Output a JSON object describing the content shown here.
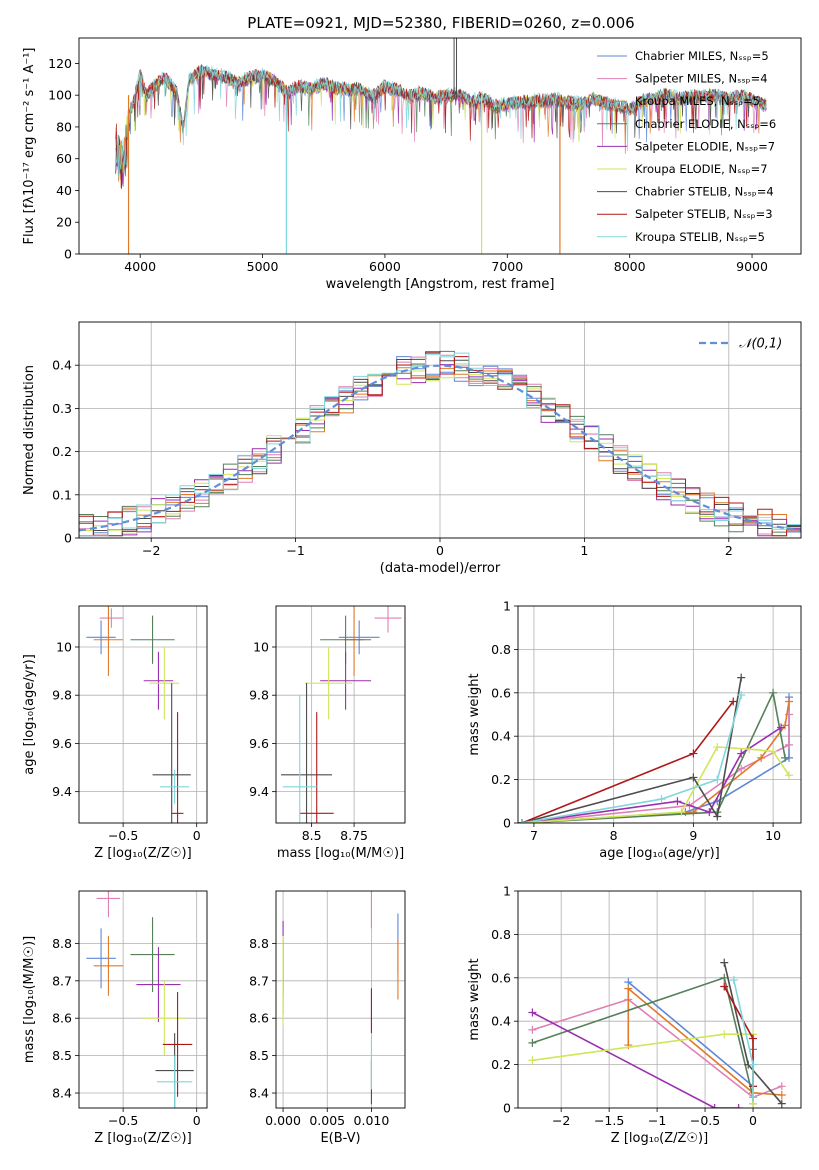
{
  "figure": {
    "title": "PLATE=0921, MJD=52380, FIBERID=0260, z=0.006"
  },
  "colors": {
    "Chabrier MILES": "#5f87d8",
    "Salpeter MILES": "#e07fb4",
    "Kroupa MILES": "#e07a2a",
    "Chabrier ELODIE": "#55805a",
    "Salpeter ELODIE": "#9a2fb0",
    "Kroupa ELODIE": "#cfe65a",
    "Chabrier STELIB": "#4d4d4d",
    "Salpeter STELIB": "#b01818",
    "Kroupa STELIB": "#7fd6dc",
    "normal": "#5f8fd8"
  },
  "chart_data": [
    {
      "id": "spectrum",
      "type": "line",
      "xlabel": "wavelength [Angstrom, rest frame]",
      "ylabel": "Flux [f_λ 10^-17 erg cm^-2 s^-1 A^-1]",
      "xlim": [
        3500,
        9400
      ],
      "ylim": [
        0,
        136
      ],
      "xticks": [
        4000,
        5000,
        6000,
        7000,
        8000,
        9000
      ],
      "yticks": [
        0,
        20,
        40,
        60,
        80,
        100,
        120
      ],
      "grid": false,
      "legend_position": "top-right",
      "legend": [
        "Chabrier MILES, N_SSP=5",
        "Salpeter MILES, N_SSP=4",
        "Kroupa MILES, N_SSP=5",
        "Chabrier ELODIE, N_SSP=6",
        "Salpeter ELODIE, N_SSP=7",
        "Kroupa ELODIE, N_SSP=7",
        "Chabrier STELIB, N_SSP=4",
        "Salpeter STELIB, N_SSP=3",
        "Kroupa STELIB, N_SSP=5"
      ],
      "spectrum_points": [
        [
          3800,
          80
        ],
        [
          3850,
          70
        ],
        [
          3900,
          85
        ],
        [
          3950,
          95
        ],
        [
          4000,
          112
        ],
        [
          4050,
          98
        ],
        [
          4100,
          103
        ],
        [
          4200,
          110
        ],
        [
          4300,
          100
        ],
        [
          4350,
          78
        ],
        [
          4400,
          108
        ],
        [
          4500,
          114
        ],
        [
          4600,
          112
        ],
        [
          4700,
          110
        ],
        [
          4800,
          106
        ],
        [
          4900,
          110
        ],
        [
          5000,
          111
        ],
        [
          5100,
          108
        ],
        [
          5200,
          100
        ],
        [
          5300,
          104
        ],
        [
          5400,
          103
        ],
        [
          5500,
          106
        ],
        [
          5600,
          103
        ],
        [
          5700,
          102
        ],
        [
          5800,
          103
        ],
        [
          5900,
          98
        ],
        [
          6000,
          104
        ],
        [
          6100,
          102
        ],
        [
          6200,
          98
        ],
        [
          6300,
          100
        ],
        [
          6400,
          97
        ],
        [
          6500,
          98
        ],
        [
          6600,
          100
        ],
        [
          6700,
          95
        ],
        [
          6800,
          97
        ],
        [
          6900,
          92
        ],
        [
          7000,
          93
        ],
        [
          7100,
          94
        ],
        [
          7200,
          95
        ],
        [
          7300,
          95
        ],
        [
          7400,
          96
        ],
        [
          7500,
          94
        ],
        [
          7600,
          93
        ],
        [
          7700,
          96
        ],
        [
          7800,
          94
        ],
        [
          7900,
          92
        ],
        [
          8000,
          90
        ],
        [
          8100,
          95
        ],
        [
          8200,
          97
        ],
        [
          8300,
          99
        ],
        [
          8400,
          96
        ],
        [
          8500,
          98
        ],
        [
          8600,
          98
        ],
        [
          8700,
          99
        ],
        [
          8800,
          96
        ],
        [
          8900,
          98
        ],
        [
          9000,
          96
        ],
        [
          9100,
          93
        ]
      ],
      "spectrum_dips": [
        [
          3905,
          0
        ],
        [
          5195,
          0
        ],
        [
          6790,
          0
        ],
        [
          7430,
          0
        ]
      ]
    },
    {
      "id": "residuals",
      "type": "histogram",
      "xlabel": "(data-model)/error",
      "ylabel": "Normed distribution",
      "xlim": [
        -2.5,
        2.5
      ],
      "ylim": [
        0,
        0.5
      ],
      "xticks": [
        -2,
        -1,
        0,
        1,
        2
      ],
      "yticks": [
        0.0,
        0.1,
        0.2,
        0.3,
        0.4
      ],
      "grid": true,
      "legend_position": "top-right",
      "legend": [
        "N(0,1)"
      ]
    },
    {
      "id": "age_vs_Z",
      "type": "scatter",
      "xlabel": "Z [log10(Z/Z☉)]",
      "ylabel": "age [log10(age/yr)]",
      "xlim": [
        -0.8,
        0.07
      ],
      "ylim": [
        9.27,
        10.17
      ],
      "xticks": [
        -0.5,
        0.0
      ],
      "yticks": [
        9.4,
        9.6,
        9.8,
        10.0
      ],
      "grid": true,
      "points": [
        {
          "model": "Chabrier MILES",
          "x": -0.65,
          "y": 10.04,
          "dx": 0.1,
          "dy": 0.07
        },
        {
          "model": "Salpeter MILES",
          "x": -0.58,
          "y": 10.12,
          "dx": 0.08,
          "dy": 0.04
        },
        {
          "model": "Kroupa MILES",
          "x": -0.6,
          "y": 10.03,
          "dx": 0.1,
          "dy": 0.15
        },
        {
          "model": "Chabrier ELODIE",
          "x": -0.3,
          "y": 10.03,
          "dx": 0.15,
          "dy": 0.1
        },
        {
          "model": "Salpeter ELODIE",
          "x": -0.26,
          "y": 9.86,
          "dx": 0.1,
          "dy": 0.12
        },
        {
          "model": "Kroupa ELODIE",
          "x": -0.22,
          "y": 9.85,
          "dx": 0.1,
          "dy": 0.15
        },
        {
          "model": "Chabrier STELIB",
          "x": -0.17,
          "y": 9.47,
          "dx": 0.13,
          "dy": 0.38
        },
        {
          "model": "Salpeter STELIB",
          "x": -0.13,
          "y": 9.31,
          "dx": 0.04,
          "dy": 0.42
        },
        {
          "model": "Kroupa STELIB",
          "x": -0.15,
          "y": 9.42,
          "dx": 0.1,
          "dy": 0.07
        }
      ]
    },
    {
      "id": "age_vs_mass",
      "type": "scatter",
      "xlabel": "mass [log10(M/M☉)]",
      "ylabel": "",
      "xlim": [
        8.29,
        9.05
      ],
      "ylim": [
        9.27,
        10.17
      ],
      "xticks": [
        8.5,
        8.75
      ],
      "yticks": [
        9.4,
        9.6,
        9.8,
        10.0
      ],
      "grid": true,
      "points": [
        {
          "model": "Chabrier MILES",
          "x": 8.78,
          "y": 10.04,
          "dx": 0.12,
          "dy": 0.07
        },
        {
          "model": "Salpeter MILES",
          "x": 8.95,
          "y": 10.12,
          "dx": 0.08,
          "dy": 0.06
        },
        {
          "model": "Kroupa MILES",
          "x": 8.75,
          "y": 10.03,
          "dx": 0.06,
          "dy": 0.15
        },
        {
          "model": "Chabrier ELODIE",
          "x": 8.7,
          "y": 10.03,
          "dx": 0.15,
          "dy": 0.1
        },
        {
          "model": "Salpeter ELODIE",
          "x": 8.7,
          "y": 9.86,
          "dx": 0.15,
          "dy": 0.12
        },
        {
          "model": "Kroupa ELODIE",
          "x": 8.6,
          "y": 9.85,
          "dx": 0.14,
          "dy": 0.15
        },
        {
          "model": "Chabrier STELIB",
          "x": 8.47,
          "y": 9.47,
          "dx": 0.15,
          "dy": 0.38
        },
        {
          "model": "Salpeter STELIB",
          "x": 8.53,
          "y": 9.31,
          "dx": 0.1,
          "dy": 0.42
        },
        {
          "model": "Kroupa STELIB",
          "x": 8.43,
          "y": 9.42,
          "dx": 0.1,
          "dy": 0.38
        }
      ]
    },
    {
      "id": "mass_weight_vs_age",
      "type": "line",
      "xlabel": "age [log10(age/yr)]",
      "ylabel": "mass weight",
      "xlim": [
        6.8,
        10.35
      ],
      "ylim": [
        0,
        1
      ],
      "xticks": [
        7,
        8,
        9,
        10
      ],
      "yticks": [
        0.0,
        0.2,
        0.4,
        0.6,
        0.8,
        1.0
      ],
      "grid": true,
      "series": [
        {
          "model": "Chabrier MILES",
          "x": [
            6.85,
            8.9,
            9.3,
            10.2,
            10.2
          ],
          "y": [
            0,
            0.05,
            0.1,
            0.3,
            0.58
          ]
        },
        {
          "model": "Salpeter MILES",
          "x": [
            6.85,
            8.95,
            9.6,
            10.2,
            10.2
          ],
          "y": [
            0,
            0.08,
            0.25,
            0.36,
            0.5
          ]
        },
        {
          "model": "Kroupa MILES",
          "x": [
            6.85,
            9.0,
            9.85,
            10.15,
            10.2
          ],
          "y": [
            0,
            0.05,
            0.3,
            0.45,
            0.56
          ]
        },
        {
          "model": "Chabrier ELODIE",
          "x": [
            6.85,
            9.3,
            10.0,
            10.15
          ],
          "y": [
            0,
            0.05,
            0.6,
            0.3
          ]
        },
        {
          "model": "Salpeter ELODIE",
          "x": [
            6.85,
            8.8,
            9.2,
            9.6,
            10.1
          ],
          "y": [
            0,
            0.1,
            0.05,
            0.32,
            0.44
          ]
        },
        {
          "model": "Kroupa ELODIE",
          "x": [
            6.85,
            8.85,
            9.3,
            9.7,
            10.0,
            10.2
          ],
          "y": [
            0,
            0.05,
            0.35,
            0.34,
            0.33,
            0.22
          ]
        },
        {
          "model": "Chabrier STELIB",
          "x": [
            6.85,
            9.0,
            9.3,
            9.6
          ],
          "y": [
            0,
            0.21,
            0.03,
            0.67
          ]
        },
        {
          "model": "Salpeter STELIB",
          "x": [
            6.85,
            9.0,
            9.5
          ],
          "y": [
            0,
            0.32,
            0.56
          ]
        },
        {
          "model": "Kroupa STELIB",
          "x": [
            6.85,
            8.6,
            9.3,
            9.6
          ],
          "y": [
            0,
            0.11,
            0.2,
            0.59
          ]
        }
      ]
    },
    {
      "id": "mass_vs_Z",
      "type": "scatter",
      "xlabel": "Z [log10(Z/Z☉)]",
      "ylabel": "mass [log10(M/M☉)]",
      "xlim": [
        -0.8,
        0.07
      ],
      "ylim": [
        8.36,
        8.94
      ],
      "xticks": [
        -0.5,
        0.0
      ],
      "yticks": [
        8.4,
        8.5,
        8.6,
        8.7,
        8.8
      ],
      "grid": true,
      "points": [
        {
          "model": "Chabrier MILES",
          "x": -0.65,
          "y": 8.76,
          "dx": 0.1,
          "dy": 0.08
        },
        {
          "model": "Salpeter MILES",
          "x": -0.6,
          "y": 8.92,
          "dx": 0.08,
          "dy": 0.05
        },
        {
          "model": "Kroupa MILES",
          "x": -0.6,
          "y": 8.74,
          "dx": 0.1,
          "dy": 0.08
        },
        {
          "model": "Chabrier ELODIE",
          "x": -0.3,
          "y": 8.77,
          "dx": 0.15,
          "dy": 0.1
        },
        {
          "model": "Salpeter ELODIE",
          "x": -0.26,
          "y": 8.69,
          "dx": 0.15,
          "dy": 0.1
        },
        {
          "model": "Kroupa ELODIE",
          "x": -0.22,
          "y": 8.6,
          "dx": 0.15,
          "dy": 0.1
        },
        {
          "model": "Chabrier STELIB",
          "x": -0.15,
          "y": 8.46,
          "dx": 0.13,
          "dy": 0.1
        },
        {
          "model": "Salpeter STELIB",
          "x": -0.13,
          "y": 8.53,
          "dx": 0.1,
          "dy": 0.14
        },
        {
          "model": "Kroupa STELIB",
          "x": -0.15,
          "y": 8.43,
          "dx": 0.12,
          "dy": 0.07
        }
      ]
    },
    {
      "id": "mass_vs_EBV",
      "type": "scatter",
      "xlabel": "E(B-V)",
      "ylabel": "",
      "xlim": [
        -0.0008,
        0.0138
      ],
      "ylim": [
        8.36,
        8.94
      ],
      "xticks": [
        0.0,
        0.005,
        0.01
      ],
      "xticklabels": [
        "0.000",
        "0.005",
        "0.010"
      ],
      "yticks": [
        8.4,
        8.5,
        8.6,
        8.7,
        8.8
      ],
      "grid": true,
      "points": [
        {
          "model": "Chabrier MILES",
          "x": 0.013,
          "y": 8.8,
          "dx": 0,
          "dy": 0.08
        },
        {
          "model": "Salpeter MILES",
          "x": 0.01,
          "y": 8.9,
          "dx": 0,
          "dy": 0.06
        },
        {
          "model": "Kroupa MILES",
          "x": 0.013,
          "y": 8.73,
          "dx": 0,
          "dy": 0.08
        },
        {
          "model": "Chabrier ELODIE",
          "x": 0.0,
          "y": 8.71,
          "dx": 0,
          "dy": 0.1
        },
        {
          "model": "Salpeter ELODIE",
          "x": 0.0,
          "y": 8.76,
          "dx": 0,
          "dy": 0.1
        },
        {
          "model": "Kroupa ELODIE",
          "x": 0.0,
          "y": 8.7,
          "dx": 0,
          "dy": 0.12
        },
        {
          "model": "Chabrier STELIB",
          "x": 0.01,
          "y": 8.43,
          "dx": 0,
          "dy": 0.06
        },
        {
          "model": "Salpeter STELIB",
          "x": 0.01,
          "y": 8.62,
          "dx": 0,
          "dy": 0.06
        },
        {
          "model": "Kroupa STELIB",
          "x": 0.01,
          "y": 8.48,
          "dx": 0,
          "dy": 0.07
        }
      ]
    },
    {
      "id": "mass_weight_vs_Z",
      "type": "line",
      "xlabel": "Z [log10(Z/Z☉)]",
      "ylabel": "mass weight",
      "xlim": [
        -2.45,
        0.5
      ],
      "ylim": [
        0,
        1
      ],
      "xticks": [
        -2.0,
        -1.5,
        -1.0,
        -0.5,
        0.0
      ],
      "yticks": [
        0.0,
        0.2,
        0.4,
        0.6,
        0.8,
        1.0
      ],
      "grid": true,
      "series": [
        {
          "model": "Chabrier MILES",
          "x": [
            -1.3,
            0.0,
            0.0,
            0.0
          ],
          "y": [
            0.58,
            0.1,
            0.05,
            0.27
          ]
        },
        {
          "model": "Salpeter MILES",
          "x": [
            -2.3,
            -1.3,
            0.0,
            0.3
          ],
          "y": [
            0.36,
            0.5,
            0.05,
            0.1
          ]
        },
        {
          "model": "Kroupa MILES",
          "x": [
            -1.3,
            -1.3,
            0.0,
            0.3
          ],
          "y": [
            0.29,
            0.55,
            0.07,
            0.06
          ]
        },
        {
          "model": "Chabrier ELODIE",
          "x": [
            -2.3,
            -0.3,
            0.0,
            0.0
          ],
          "y": [
            0.3,
            0.6,
            0.05,
            0.02
          ]
        },
        {
          "model": "Salpeter ELODIE",
          "x": [
            -2.3,
            -0.4,
            -0.15
          ],
          "y": [
            0.44,
            0.0,
            0.0
          ]
        },
        {
          "model": "Kroupa ELODIE",
          "x": [
            -2.3,
            -0.3,
            0.0,
            0.0
          ],
          "y": [
            0.22,
            0.34,
            0.34,
            0.02
          ]
        },
        {
          "model": "Chabrier STELIB",
          "x": [
            -0.3,
            -0.05,
            0.3
          ],
          "y": [
            0.67,
            0.2,
            0.02
          ]
        },
        {
          "model": "Salpeter STELIB",
          "x": [
            -0.3,
            0.0,
            0.0
          ],
          "y": [
            0.56,
            0.32,
            0.1
          ]
        },
        {
          "model": "Kroupa STELIB",
          "x": [
            -0.2,
            0.0,
            0.0
          ],
          "y": [
            0.59,
            0.2,
            0.05
          ]
        }
      ]
    }
  ]
}
